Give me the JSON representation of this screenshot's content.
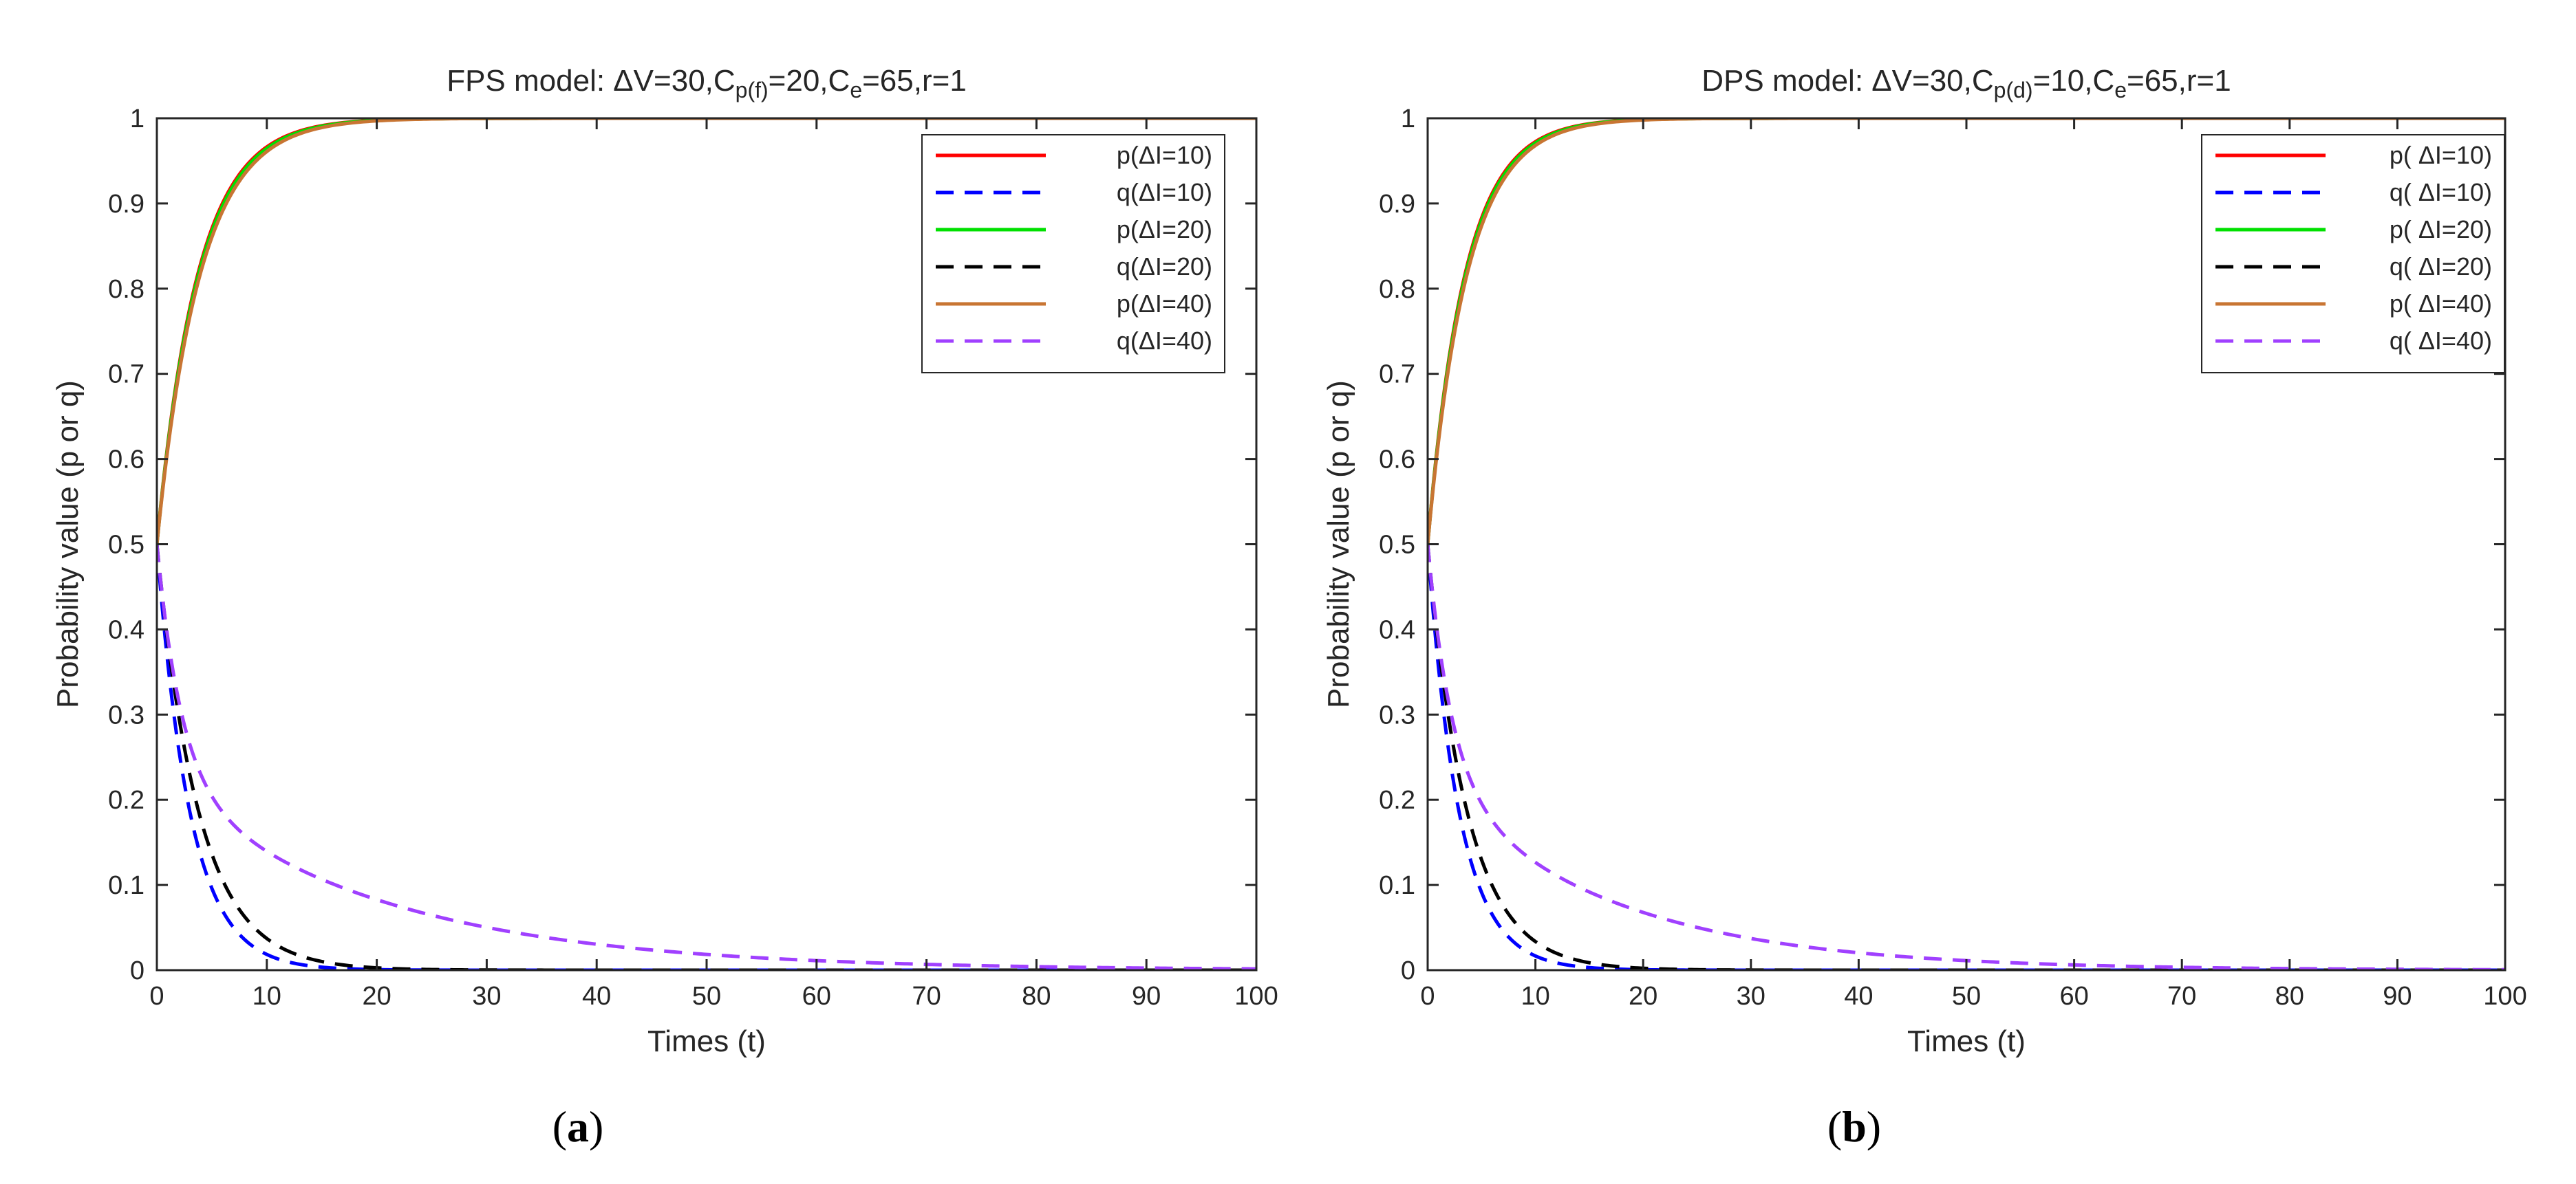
{
  "chart_data": [
    {
      "panel": "a",
      "type": "line",
      "title_main": "FPS model: ΔV=30,C",
      "title_sub1": "p(f)",
      "title_mid": "=20,C",
      "title_sub2": "e",
      "title_end": "=65,r=1",
      "xlabel": "Times (t)",
      "ylabel": "Probability value (p or q)",
      "xlim": [
        0,
        100
      ],
      "ylim": [
        0,
        1
      ],
      "xticks": [
        "0",
        "10",
        "20",
        "30",
        "40",
        "50",
        "60",
        "70",
        "80",
        "90",
        "100"
      ],
      "yticks": [
        "0",
        "0.1",
        "0.2",
        "0.3",
        "0.4",
        "0.5",
        "0.6",
        "0.7",
        "0.8",
        "0.9",
        "1"
      ],
      "caption": "a",
      "series": [
        {
          "name": "p(ΔI=10)",
          "kind": "p",
          "rate": 0.27,
          "color": "#ff0000",
          "dash": false
        },
        {
          "name": "q(ΔI=10)",
          "kind": "q",
          "rate": 0.33,
          "color": "#0000ff",
          "dash": true
        },
        {
          "name": "p(ΔI=20)",
          "kind": "p",
          "rate": 0.265,
          "color": "#00e000",
          "dash": false
        },
        {
          "name": "q(ΔI=20)",
          "kind": "q",
          "rate": 0.26,
          "color": "#000000",
          "dash": true
        },
        {
          "name": "p(ΔI=40)",
          "kind": "p",
          "rate": 0.255,
          "color": "#c87533",
          "dash": false
        },
        {
          "name": "q(ΔI=40)",
          "kind": "q",
          "rate": 0.11,
          "tail": 0.05,
          "color": "#a040ff",
          "dash": true
        }
      ]
    },
    {
      "panel": "b",
      "type": "line",
      "title_main": "DPS model: ΔV=30,C",
      "title_sub1": "p(d)",
      "title_mid": "=10,C",
      "title_sub2": "e",
      "title_end": "=65,r=1",
      "xlabel": "Times (t)",
      "ylabel": "Probability value (p or q)",
      "xlim": [
        0,
        100
      ],
      "ylim": [
        0,
        1
      ],
      "xticks": [
        "0",
        "10",
        "20",
        "30",
        "40",
        "50",
        "60",
        "70",
        "80",
        "90",
        "100"
      ],
      "yticks": [
        "0",
        "0.1",
        "0.2",
        "0.3",
        "0.4",
        "0.5",
        "0.6",
        "0.7",
        "0.8",
        "0.9",
        "1"
      ],
      "caption": "b",
      "series": [
        {
          "name": "p( ΔI=10)",
          "kind": "p",
          "rate": 0.29,
          "color": "#ff0000",
          "dash": false
        },
        {
          "name": "q( ΔI=10)",
          "kind": "q",
          "rate": 0.34,
          "color": "#0000ff",
          "dash": true
        },
        {
          "name": "p( ΔI=20)",
          "kind": "p",
          "rate": 0.285,
          "color": "#00e000",
          "dash": false
        },
        {
          "name": "q( ΔI=20)",
          "kind": "q",
          "rate": 0.27,
          "color": "#000000",
          "dash": true
        },
        {
          "name": "p( ΔI=40)",
          "kind": "p",
          "rate": 0.275,
          "color": "#c87533",
          "dash": false
        },
        {
          "name": "q( ΔI=40)",
          "kind": "q",
          "rate": 0.12,
          "tail": 0.06,
          "color": "#a040ff",
          "dash": true
        }
      ]
    }
  ]
}
